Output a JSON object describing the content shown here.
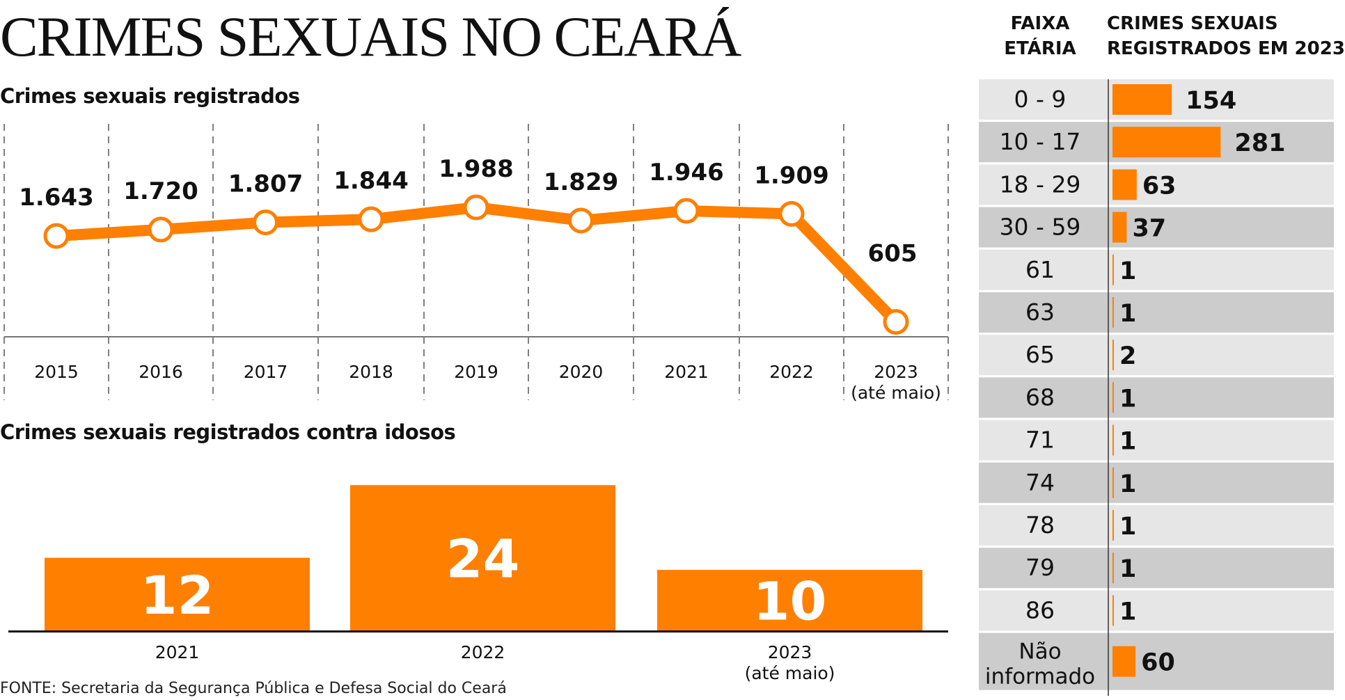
{
  "title": "CRIMES SEXUAIS NO CEARÁ",
  "source": "FONTE: Secretaria da Segurança Pública e Defesa Social do Ceará",
  "colors": {
    "accent": "#ff7f00",
    "row_light": "#e6e6e6",
    "row_dark": "#cccccc",
    "text": "#111111"
  },
  "chart_data": [
    {
      "type": "line",
      "title": "Crimes sexuais registrados",
      "categories": [
        "2015",
        "2016",
        "2017",
        "2018",
        "2019",
        "2020",
        "2021",
        "2022",
        "2023"
      ],
      "category_notes": [
        "",
        "",
        "",
        "",
        "",
        "",
        "",
        "",
        "(até maio)"
      ],
      "values": [
        1643,
        1720,
        1807,
        1844,
        1988,
        1829,
        1946,
        1909,
        605
      ],
      "data_labels": [
        "1.643",
        "1.720",
        "1.807",
        "1.844",
        "1.988",
        "1.829",
        "1.946",
        "1.909",
        "605"
      ],
      "grid": "vertical dashed"
    },
    {
      "type": "bar",
      "title": "Crimes sexuais registrados contra idosos",
      "categories": [
        "2021",
        "2022",
        "2023"
      ],
      "category_notes": [
        "",
        "",
        "(até maio)"
      ],
      "values": [
        12,
        24,
        10
      ]
    },
    {
      "type": "table",
      "headers": [
        "FAIXA ETÁRIA",
        "CRIMES SEXUAIS REGISTRADOS EM 2023"
      ],
      "header_lines": [
        [
          "FAIXA",
          "ETÁRIA"
        ],
        [
          "CRIMES SEXUAIS",
          "REGISTRADOS EM 2023"
        ]
      ],
      "rows": [
        {
          "label": "0 - 9",
          "value": 154
        },
        {
          "label": "10 - 17",
          "value": 281
        },
        {
          "label": "18 - 29",
          "value": 63
        },
        {
          "label": "30 - 59",
          "value": 37
        },
        {
          "label": "61",
          "value": 1
        },
        {
          "label": "63",
          "value": 1
        },
        {
          "label": "65",
          "value": 2
        },
        {
          "label": "68",
          "value": 1
        },
        {
          "label": "71",
          "value": 1
        },
        {
          "label": "74",
          "value": 1
        },
        {
          "label": "78",
          "value": 1
        },
        {
          "label": "79",
          "value": 1
        },
        {
          "label": "86",
          "value": 1
        },
        {
          "label": "Não informado",
          "label_lines": [
            "Não",
            "informado"
          ],
          "value": 60
        }
      ]
    }
  ]
}
